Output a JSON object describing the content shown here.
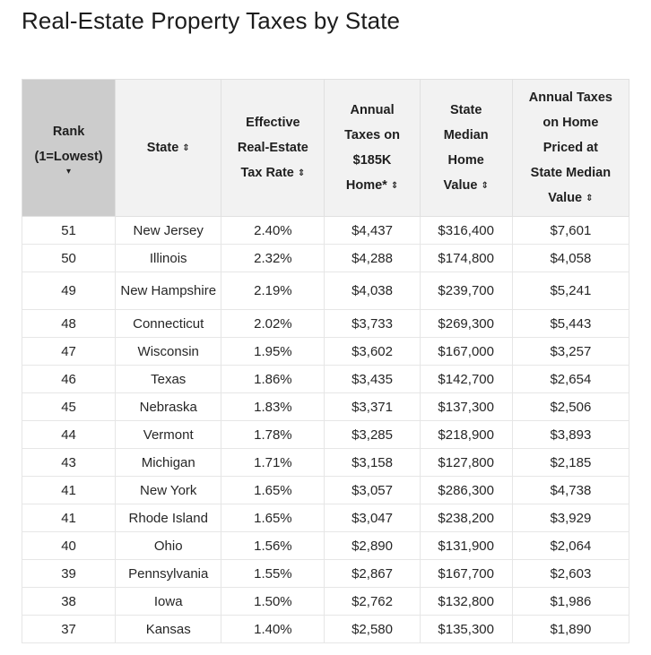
{
  "title": "Real-Estate Property Taxes by State",
  "headers": {
    "rank_line1": "Rank",
    "rank_line2": "(1=Lowest)",
    "rank_sort_icon": "▾",
    "state": "State",
    "rate": [
      "Effective",
      "Real-Estate",
      "Tax Rate"
    ],
    "taxes_185k": [
      "Annual",
      "Taxes on",
      "$185K",
      "Home*"
    ],
    "median_value": [
      "State",
      "Median",
      "Home",
      "Value"
    ],
    "annual_median": [
      "Annual Taxes",
      "on Home",
      "Priced at",
      "State Median",
      "Value"
    ],
    "sort_icon": "⇕"
  },
  "rows": [
    {
      "rank": "51",
      "state": "New Jersey",
      "rate": "2.40%",
      "tax185k": "$4,437",
      "median": "$316,400",
      "annual": "$7,601"
    },
    {
      "rank": "50",
      "state": "Illinois",
      "rate": "2.32%",
      "tax185k": "$4,288",
      "median": "$174,800",
      "annual": "$4,058"
    },
    {
      "rank": "49",
      "state": "New Hampshire",
      "rate": "2.19%",
      "tax185k": "$4,038",
      "median": "$239,700",
      "annual": "$5,241"
    },
    {
      "rank": "48",
      "state": "Connecticut",
      "rate": "2.02%",
      "tax185k": "$3,733",
      "median": "$269,300",
      "annual": "$5,443"
    },
    {
      "rank": "47",
      "state": "Wisconsin",
      "rate": "1.95%",
      "tax185k": "$3,602",
      "median": "$167,000",
      "annual": "$3,257"
    },
    {
      "rank": "46",
      "state": "Texas",
      "rate": "1.86%",
      "tax185k": "$3,435",
      "median": "$142,700",
      "annual": "$2,654"
    },
    {
      "rank": "45",
      "state": "Nebraska",
      "rate": "1.83%",
      "tax185k": "$3,371",
      "median": "$137,300",
      "annual": "$2,506"
    },
    {
      "rank": "44",
      "state": "Vermont",
      "rate": "1.78%",
      "tax185k": "$3,285",
      "median": "$218,900",
      "annual": "$3,893"
    },
    {
      "rank": "43",
      "state": "Michigan",
      "rate": "1.71%",
      "tax185k": "$3,158",
      "median": "$127,800",
      "annual": "$2,185"
    },
    {
      "rank": "41",
      "state": "New York",
      "rate": "1.65%",
      "tax185k": "$3,057",
      "median": "$286,300",
      "annual": "$4,738"
    },
    {
      "rank": "41",
      "state": "Rhode Island",
      "rate": "1.65%",
      "tax185k": "$3,047",
      "median": "$238,200",
      "annual": "$3,929"
    },
    {
      "rank": "40",
      "state": "Ohio",
      "rate": "1.56%",
      "tax185k": "$2,890",
      "median": "$131,900",
      "annual": "$2,064"
    },
    {
      "rank": "39",
      "state": "Pennsylvania",
      "rate": "1.55%",
      "tax185k": "$2,867",
      "median": "$167,700",
      "annual": "$2,603"
    },
    {
      "rank": "38",
      "state": "Iowa",
      "rate": "1.50%",
      "tax185k": "$2,762",
      "median": "$132,800",
      "annual": "$1,986"
    },
    {
      "rank": "37",
      "state": "Kansas",
      "rate": "1.40%",
      "tax185k": "$2,580",
      "median": "$135,300",
      "annual": "$1,890"
    }
  ]
}
